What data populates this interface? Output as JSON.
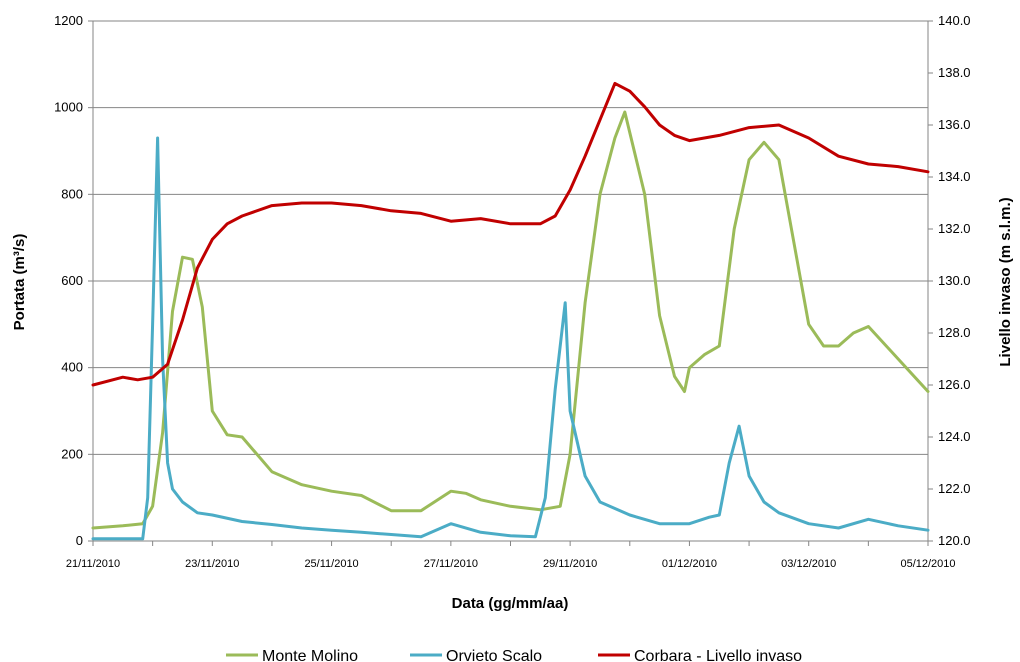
{
  "chart_data": {
    "type": "line",
    "title": "",
    "xlabel": "Data (gg/mm/aa)",
    "ylabel": "Portata (m³/s)",
    "y2label": "Livello invaso (m s.l.m.)",
    "ylim": [
      0,
      1200
    ],
    "y2lim": [
      120,
      140
    ],
    "y_ticks": [
      0,
      200,
      400,
      600,
      800,
      1000,
      1200
    ],
    "y_tick_labels": [
      "0",
      "200",
      "400",
      "600",
      "800",
      "1000",
      "1200"
    ],
    "y2_ticks": [
      120,
      122,
      124,
      126,
      128,
      130,
      132,
      134,
      136,
      138,
      140
    ],
    "y2_tick_labels": [
      "120.0",
      "122.0",
      "124.0",
      "126.0",
      "128.0",
      "130.0",
      "132.0",
      "134.0",
      "136.0",
      "138.0",
      "140.0"
    ],
    "x_range": [
      "21/11/2010",
      "05/12/2010"
    ],
    "x_ticks": [
      "21/11/2010",
      "23/11/2010",
      "25/11/2010",
      "27/11/2010",
      "29/11/2010",
      "01/12/2010",
      "03/12/2010",
      "05/12/2010"
    ],
    "grid": "horizontal",
    "legend_position": "bottom",
    "series": [
      {
        "name": "Monte Molino",
        "axis": "left",
        "color": "#9bbb59",
        "x": [
          "21/11/2010 00:00",
          "21/11/2010 12:00",
          "21/11/2010 20:00",
          "22/11/2010 00:00",
          "22/11/2010 04:00",
          "22/11/2010 08:00",
          "22/11/2010 12:00",
          "22/11/2010 16:00",
          "22/11/2010 20:00",
          "23/11/2010 00:00",
          "23/11/2010 06:00",
          "23/11/2010 12:00",
          "24/11/2010 00:00",
          "24/11/2010 12:00",
          "25/11/2010 00:00",
          "25/11/2010 12:00",
          "26/11/2010 00:00",
          "26/11/2010 12:00",
          "27/11/2010 00:00",
          "27/11/2010 06:00",
          "27/11/2010 12:00",
          "28/11/2010 00:00",
          "28/11/2010 12:00",
          "28/11/2010 20:00",
          "29/11/2010 00:00",
          "29/11/2010 06:00",
          "29/11/2010 12:00",
          "29/11/2010 18:00",
          "29/11/2010 22:00",
          "30/11/2010 06:00",
          "30/11/2010 12:00",
          "30/11/2010 18:00",
          "30/11/2010 22:00",
          "01/12/2010 00:00",
          "01/12/2010 06:00",
          "01/12/2010 12:00",
          "01/12/2010 18:00",
          "02/12/2010 00:00",
          "02/12/2010 06:00",
          "02/12/2010 12:00",
          "02/12/2010 18:00",
          "03/12/2010 00:00",
          "03/12/2010 06:00",
          "03/12/2010 12:00",
          "03/12/2010 18:00",
          "04/12/2010 00:00",
          "04/12/2010 12:00",
          "05/12/2010 00:00"
        ],
        "values": [
          30,
          35,
          40,
          80,
          250,
          530,
          655,
          650,
          540,
          300,
          245,
          240,
          160,
          130,
          115,
          105,
          70,
          70,
          115,
          110,
          95,
          80,
          72,
          80,
          200,
          550,
          800,
          930,
          990,
          800,
          520,
          380,
          345,
          400,
          430,
          450,
          720,
          880,
          920,
          880,
          690,
          500,
          450,
          450,
          480,
          495,
          420,
          345
        ]
      },
      {
        "name": "Orvieto Scalo",
        "axis": "left",
        "color": "#4bacc6",
        "x": [
          "21/11/2010 00:00",
          "21/11/2010 20:00",
          "21/11/2010 22:00",
          "22/11/2010 00:00",
          "22/11/2010 02:00",
          "22/11/2010 04:00",
          "22/11/2010 06:00",
          "22/11/2010 08:00",
          "22/11/2010 12:00",
          "22/11/2010 18:00",
          "23/11/2010 00:00",
          "23/11/2010 12:00",
          "24/11/2010 00:00",
          "24/11/2010 12:00",
          "25/11/2010 00:00",
          "25/11/2010 12:00",
          "26/11/2010 00:00",
          "26/11/2010 12:00",
          "27/11/2010 00:00",
          "27/11/2010 12:00",
          "28/11/2010 00:00",
          "28/11/2010 10:00",
          "28/11/2010 14:00",
          "28/11/2010 18:00",
          "28/11/2010 22:00",
          "29/11/2010 00:00",
          "29/11/2010 06:00",
          "29/11/2010 12:00",
          "30/11/2010 00:00",
          "30/11/2010 12:00",
          "01/12/2010 00:00",
          "01/12/2010 08:00",
          "01/12/2010 12:00",
          "01/12/2010 16:00",
          "01/12/2010 20:00",
          "02/12/2010 00:00",
          "02/12/2010 06:00",
          "02/12/2010 12:00",
          "03/12/2010 00:00",
          "03/12/2010 12:00",
          "04/12/2010 00:00",
          "04/12/2010 12:00",
          "05/12/2010 00:00"
        ],
        "values": [
          5,
          5,
          100,
          500,
          930,
          420,
          180,
          120,
          90,
          65,
          60,
          45,
          38,
          30,
          25,
          20,
          15,
          10,
          40,
          20,
          12,
          10,
          100,
          350,
          550,
          300,
          150,
          90,
          60,
          40,
          40,
          55,
          60,
          180,
          265,
          150,
          90,
          65,
          40,
          30,
          50,
          35,
          25
        ]
      },
      {
        "name": "Corbara - Livello invaso",
        "axis": "right",
        "color": "#c00000",
        "x": [
          "21/11/2010 00:00",
          "21/11/2010 12:00",
          "21/11/2010 18:00",
          "22/11/2010 00:00",
          "22/11/2010 06:00",
          "22/11/2010 12:00",
          "22/11/2010 18:00",
          "23/11/2010 00:00",
          "23/11/2010 06:00",
          "23/11/2010 12:00",
          "24/11/2010 00:00",
          "24/11/2010 12:00",
          "25/11/2010 00:00",
          "25/11/2010 12:00",
          "26/11/2010 00:00",
          "26/11/2010 12:00",
          "27/11/2010 00:00",
          "27/11/2010 12:00",
          "28/11/2010 00:00",
          "28/11/2010 12:00",
          "28/11/2010 18:00",
          "29/11/2010 00:00",
          "29/11/2010 06:00",
          "29/11/2010 12:00",
          "29/11/2010 18:00",
          "30/11/2010 00:00",
          "30/11/2010 06:00",
          "30/11/2010 12:00",
          "30/11/2010 18:00",
          "01/12/2010 00:00",
          "01/12/2010 12:00",
          "02/12/2010 00:00",
          "02/12/2010 12:00",
          "03/12/2010 00:00",
          "03/12/2010 12:00",
          "04/12/2010 00:00",
          "04/12/2010 12:00",
          "05/12/2010 00:00"
        ],
        "values": [
          126.0,
          126.3,
          126.2,
          126.3,
          126.8,
          128.5,
          130.5,
          131.6,
          132.2,
          132.5,
          132.9,
          133.0,
          133.0,
          132.9,
          132.7,
          132.6,
          132.3,
          132.4,
          132.2,
          132.2,
          132.5,
          133.5,
          134.8,
          136.2,
          137.6,
          137.3,
          136.7,
          136.0,
          135.6,
          135.4,
          135.6,
          135.9,
          136.0,
          135.5,
          134.8,
          134.5,
          134.4,
          134.2
        ]
      }
    ]
  }
}
